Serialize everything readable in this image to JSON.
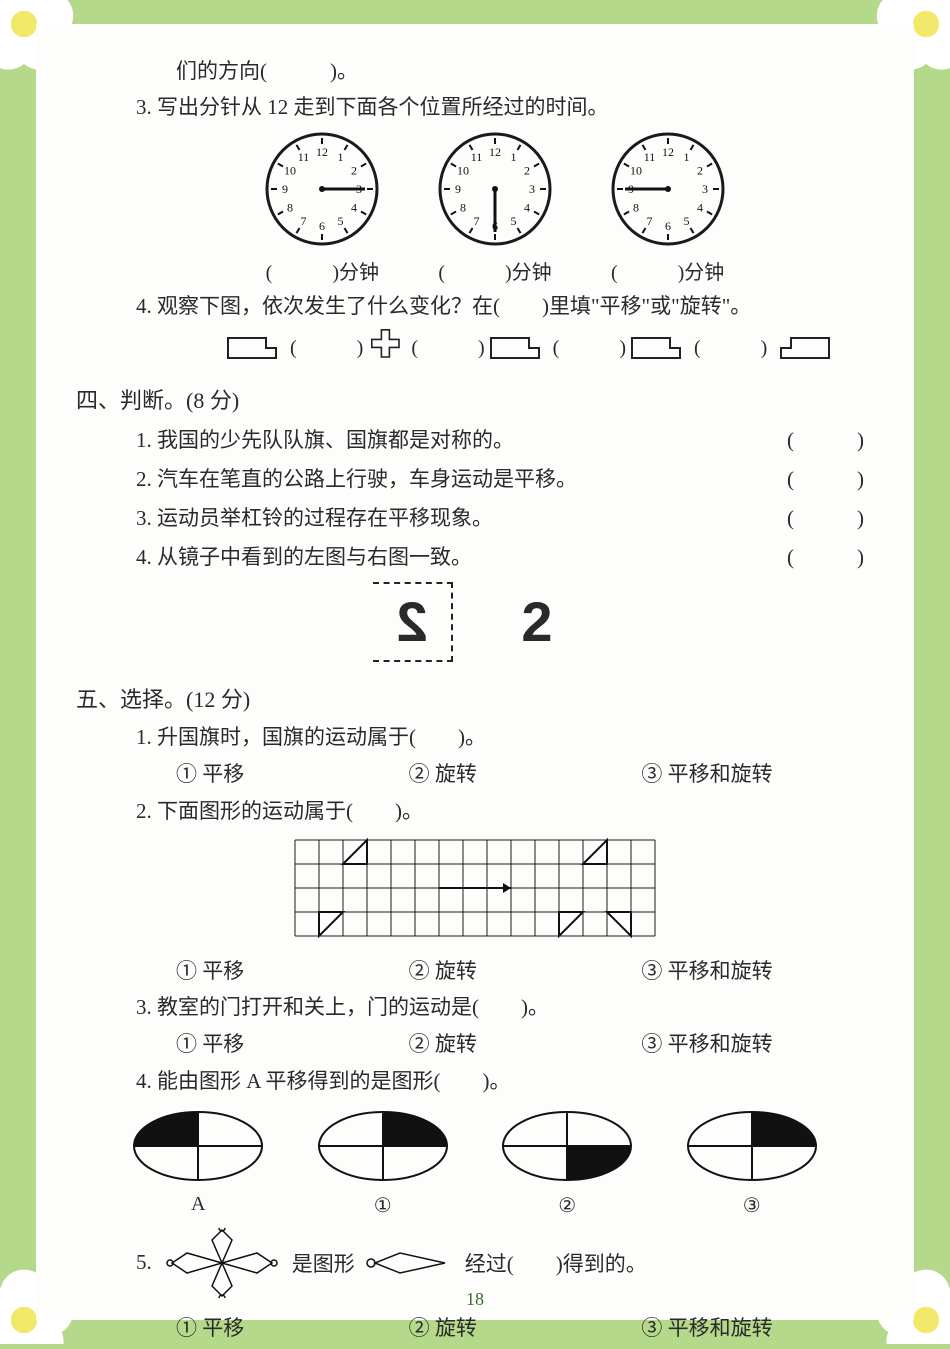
{
  "colors": {
    "page_bg": "#fdfdfc",
    "frame_bg": "#b5d98a",
    "text": "#2a2a2a",
    "flower_white": "#ffffff",
    "flower_center": "#f2e869"
  },
  "top_fragment": "们的方向(　　　)。",
  "q3": {
    "text": "3. 写出分针从 12 走到下面各个位置所经过的时间。",
    "clocks": [
      {
        "minute_angle": 90,
        "label": "(　　　)分钟"
      },
      {
        "minute_angle": 180,
        "label": "(　　　)分钟"
      },
      {
        "minute_angle": 270,
        "label": "(　　　)分钟"
      }
    ],
    "clock_style": {
      "radius": 55,
      "stroke": "#1a1a1a",
      "stroke_width": 3,
      "numbers": [
        "12",
        "1",
        "2",
        "3",
        "4",
        "5",
        "6",
        "7",
        "8",
        "9",
        "10",
        "11"
      ],
      "number_fontsize": 12
    }
  },
  "q4": {
    "text": "4. 观察下图，依次发生了什么变化？在(　　)里填\"平移\"或\"旋转\"。",
    "blank": "(　　　)"
  },
  "section4": {
    "title": "四、判断。(8 分)",
    "items": [
      "1. 我国的少先队队旗、国旗都是对称的。",
      "2. 汽车在笔直的公路上行驶，车身运动是平移。",
      "3. 运动员举杠铃的过程存在平移现象。",
      "4. 从镜子中看到的左图与右图一致。"
    ],
    "paren": "(　　　)",
    "mirror_digit": "2"
  },
  "section5": {
    "title": "五、选择。(12 分)",
    "q1": {
      "text": "1. 升国旗时，国旗的运动属于(　　)。",
      "opts": [
        "① 平移",
        "② 旋转",
        "③ 平移和旋转"
      ]
    },
    "q2": {
      "text": "2. 下面图形的运动属于(　　)。",
      "opts": [
        "① 平移",
        "② 旋转",
        "③ 平移和旋转"
      ],
      "grid": {
        "cols": 15,
        "rows": 4,
        "cell": 24,
        "stroke": "#1a1a1a"
      }
    },
    "q3": {
      "text": "3. 教室的门打开和关上，门的运动是(　　)。",
      "opts": [
        "① 平移",
        "② 旋转",
        "③ 平移和旋转"
      ]
    },
    "q4": {
      "text": "4. 能由图形 A 平移得到的是图形(　　)。",
      "labels": [
        "A",
        "①",
        "②",
        "③"
      ],
      "ellipses": [
        {
          "q": "tl"
        },
        {
          "q": "tr"
        },
        {
          "q": "br"
        },
        {
          "q": "tr2"
        }
      ]
    },
    "q5": {
      "prefix": "5. ",
      "mid": " 是图形 ",
      "suffix": " 经过(　　)得到的。",
      "opts": [
        "① 平移",
        "② 旋转",
        "③ 平移和旋转"
      ]
    }
  },
  "pagenum": "18"
}
